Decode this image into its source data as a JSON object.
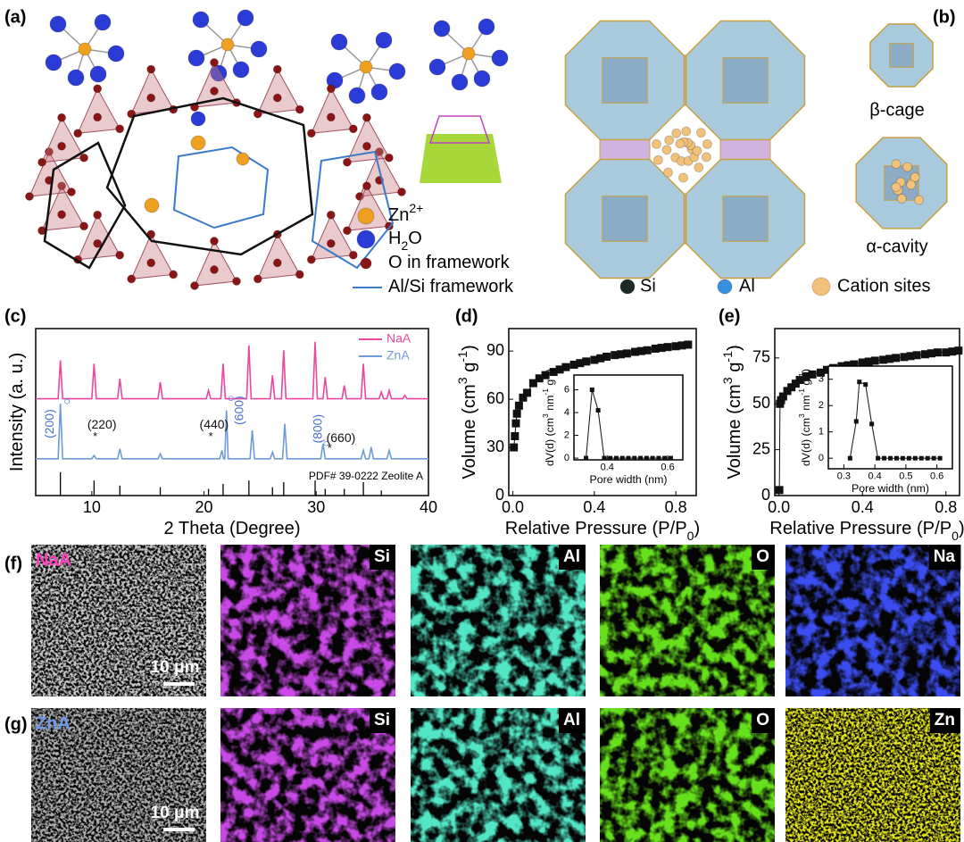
{
  "panels": {
    "a": "(a)",
    "b": "(b)",
    "c": "(c)",
    "d": "(d)",
    "e": "(e)",
    "f": "(f)",
    "g": "(g)"
  },
  "structure_a": {
    "legend": [
      {
        "parts": [
          "Zn",
          "2+"
        ],
        "shift": "super"
      },
      {
        "parts": [
          "H",
          "2",
          "O"
        ],
        "shift": "sub"
      },
      {
        "parts": [
          "O in framework"
        ]
      },
      {
        "parts": [
          "Al/Si framework"
        ]
      }
    ]
  },
  "structure_b": {
    "cage_labels": [
      "β-cage",
      "α-cavity"
    ],
    "legend": [
      "Si",
      "Al",
      "Cation sites"
    ]
  },
  "chart_data": [
    {
      "type": "line",
      "xlabel": {
        "parts": [
          "2 Theta (Degree)"
        ]
      },
      "ylabel": {
        "parts": [
          "Intensity (a. u.)"
        ]
      },
      "xlim": [
        5,
        40
      ],
      "xticks": [
        10,
        20,
        30,
        40
      ],
      "ylim": [
        0,
        100
      ],
      "legend": "upper right",
      "series": [
        {
          "name": "NaA",
          "color": "#e8489e",
          "x": [
            5,
            7.0,
            7.2,
            7.4,
            10.0,
            10.2,
            10.4,
            12.3,
            12.5,
            12.7,
            15.9,
            16.1,
            16.3,
            20.2,
            20.4,
            20.6,
            21.5,
            21.7,
            21.9,
            23.8,
            24.0,
            24.2,
            25.9,
            26.1,
            26.3,
            26.9,
            27.1,
            27.3,
            29.7,
            29.9,
            30.1,
            30.6,
            30.8,
            31.0,
            32.3,
            32.5,
            32.7,
            34.0,
            34.2,
            34.4,
            35.6,
            35.8,
            36.0,
            36.3,
            36.5,
            36.7,
            37.7,
            37.9,
            38.1,
            40
          ],
          "values": [
            58,
            58,
            81,
            58,
            58,
            79,
            58,
            58,
            70,
            58,
            58,
            68,
            58,
            58,
            63,
            58,
            58,
            79,
            58,
            58,
            90,
            58,
            58,
            72,
            58,
            58,
            87,
            58,
            58,
            92,
            58,
            58,
            71,
            58,
            58,
            66,
            58,
            58,
            79,
            58,
            58,
            62,
            58,
            58,
            63,
            58,
            58,
            60,
            58,
            58
          ]
        },
        {
          "name": "ZnA",
          "color": "#6f9bd6",
          "x": [
            5,
            7.0,
            7.2,
            7.4,
            10.0,
            10.2,
            10.4,
            12.3,
            12.5,
            12.7,
            15.9,
            16.1,
            16.3,
            21.4,
            21.6,
            21.75,
            21.85,
            22.0,
            22.15,
            24.1,
            24.3,
            24.5,
            25.9,
            26.1,
            26.3,
            27.0,
            27.2,
            27.4,
            30.4,
            30.6,
            30.8,
            34.0,
            34.2,
            34.4,
            34.7,
            34.9,
            35.1,
            36.3,
            36.5,
            36.7,
            40
          ],
          "values": [
            22,
            22,
            55,
            22,
            22,
            24,
            22,
            22,
            28,
            22,
            22,
            25,
            22,
            22,
            27,
            22,
            22,
            51,
            22,
            22,
            39,
            22,
            22,
            26,
            22,
            22,
            43,
            22,
            22,
            31,
            22,
            22,
            27,
            22,
            22,
            29,
            22,
            22,
            27,
            22,
            22
          ]
        }
      ],
      "reference": {
        "label": "PDF# 39-0222 Zeolite A",
        "x": [
          7.2,
          10.2,
          12.5,
          16.1,
          20.4,
          21.7,
          24.0,
          26.1,
          27.1,
          29.9,
          30.8,
          32.5,
          34.2,
          35.8
        ],
        "values": [
          14,
          9,
          6,
          5,
          4,
          7,
          9,
          5,
          8,
          9,
          4,
          4,
          8,
          3
        ]
      },
      "annotations": [
        {
          "text": "(200)",
          "marker": "○",
          "color": "#4a6fd0"
        },
        {
          "text": "(220)",
          "marker": "*",
          "color": "#111111"
        },
        {
          "text": "(440)",
          "marker": "*",
          "color": "#111111"
        },
        {
          "text": "(600)",
          "marker": "○",
          "color": "#4a6fd0"
        },
        {
          "text": "(800)",
          "marker": "○",
          "color": "#4a6fd0"
        },
        {
          "text": "(660)",
          "marker": "*",
          "color": "#111111"
        }
      ]
    },
    {
      "type": "line",
      "markers": "square",
      "color": "#111111",
      "xlabel": {
        "parts": [
          "Relative Pressure (P/P",
          "0",
          ")"
        ],
        "shift": "sub"
      },
      "ylabel": {
        "parts": [
          "Volume (cm",
          "3",
          " g",
          "-1",
          ")"
        ],
        "shift": "super"
      },
      "xlim": [
        -0.02,
        0.9
      ],
      "xticks": [
        {
          "value": 0,
          "label": "0.0"
        },
        0.4,
        0.8
      ],
      "ylim": [
        0,
        104
      ],
      "yticks": [
        0,
        30,
        60,
        90
      ],
      "x": [
        0.005,
        0.01,
        0.015,
        0.02,
        0.03,
        0.05,
        0.07,
        0.1,
        0.13,
        0.16,
        0.2,
        0.23,
        0.26,
        0.3,
        0.33,
        0.36,
        0.4,
        0.43,
        0.46,
        0.5,
        0.53,
        0.56,
        0.6,
        0.63,
        0.66,
        0.7,
        0.73,
        0.76,
        0.8,
        0.83,
        0.86
      ],
      "values": [
        30,
        37,
        45,
        51,
        56,
        61,
        64,
        70,
        73,
        75,
        77,
        78.5,
        80,
        81.5,
        82.5,
        83.5,
        84.5,
        85.5,
        86.5,
        87.5,
        88,
        88.5,
        89.5,
        90,
        90.5,
        91.5,
        92,
        92.5,
        93,
        93.5,
        94
      ],
      "inset": {
        "type": "line",
        "markers": "square",
        "color": "#111111",
        "xlabel": {
          "parts": [
            "Pore width (nm)"
          ]
        },
        "ylabel": {
          "parts": [
            "dV(d) (cm",
            "3",
            " nm",
            "-1",
            " g",
            "-1",
            ")"
          ],
          "shift": "super"
        },
        "xlim": [
          0.29,
          0.65
        ],
        "xticks": [
          0.4,
          0.6
        ],
        "ylim": [
          -0.15,
          7.3
        ],
        "yticks": [
          0,
          2,
          4,
          6
        ],
        "x": [
          0.33,
          0.35,
          0.37,
          0.39,
          0.41,
          0.43,
          0.45,
          0.47,
          0.49,
          0.51,
          0.53,
          0.55,
          0.57,
          0.59,
          0.61
        ],
        "values": [
          0,
          6,
          4.2,
          0,
          0,
          0,
          0,
          0,
          0,
          0,
          0,
          0,
          0,
          0,
          0
        ]
      }
    },
    {
      "type": "line",
      "markers": "square",
      "color": "#111111",
      "xlabel": {
        "parts": [
          "Relative Pressure (P/P",
          "0",
          ")"
        ],
        "shift": "sub"
      },
      "ylabel": {
        "parts": [
          "Volume (cm",
          "3",
          " g",
          "-1",
          ")"
        ],
        "shift": "super"
      },
      "xlim": [
        -0.02,
        0.865
      ],
      "xticks": [
        {
          "value": 0,
          "label": "0.0"
        },
        0.4,
        0.8
      ],
      "ylim": [
        0,
        91
      ],
      "yticks": [
        0,
        25,
        50,
        75
      ],
      "x": [
        0.002,
        0.005,
        0.01,
        0.02,
        0.04,
        0.06,
        0.08,
        0.1,
        0.13,
        0.16,
        0.2,
        0.23,
        0.26,
        0.3,
        0.33,
        0.36,
        0.4,
        0.43,
        0.46,
        0.5,
        0.53,
        0.56,
        0.6,
        0.63,
        0.66,
        0.7,
        0.73,
        0.76,
        0.8,
        0.83,
        0.86
      ],
      "values": [
        3,
        50,
        52,
        54,
        57,
        59,
        61,
        63,
        65,
        66,
        67,
        68.5,
        69.5,
        70.5,
        71,
        71.5,
        72.5,
        73,
        73.5,
        74,
        74.5,
        75,
        75.5,
        76,
        76.5,
        77,
        77.5,
        78,
        78,
        78.5,
        79
      ],
      "inset": {
        "type": "line",
        "markers": "square",
        "color": "#111111",
        "xlabel": {
          "parts": [
            "Pore width (nm)"
          ]
        },
        "ylabel": {
          "parts": [
            "dV(d) (cm",
            "3",
            " nm",
            "-1",
            " g",
            "-1",
            ")"
          ],
          "shift": "super"
        },
        "xlim": [
          0.25,
          0.65
        ],
        "xticks": [
          0.3,
          0.4,
          0.5,
          0.6
        ],
        "ylim": [
          -0.4,
          3.5
        ],
        "yticks": [
          0,
          1,
          2,
          3
        ],
        "x": [
          0.32,
          0.34,
          0.35,
          0.37,
          0.39,
          0.41,
          0.43,
          0.45,
          0.47,
          0.49,
          0.51,
          0.53,
          0.55,
          0.57,
          0.59,
          0.61
        ],
        "values": [
          0,
          1.4,
          2.9,
          2.8,
          1.3,
          0,
          0,
          0,
          0,
          0,
          0,
          0,
          0,
          0,
          0,
          0
        ]
      }
    }
  ],
  "maps": {
    "rows": [
      {
        "sample": "NaA",
        "sample_color": "#ff3fbf",
        "scale_bar": "10 μm",
        "elements": [
          "Si",
          "Al",
          "O",
          "Na"
        ],
        "colors": [
          "#c8c8c8",
          "#c84ae6",
          "#52e6c6",
          "#66e01c",
          "#3a4ef0"
        ]
      },
      {
        "sample": "ZnA",
        "sample_color": "#6f9be8",
        "scale_bar": "10 μm",
        "elements": [
          "Si",
          "Al",
          "O",
          "Zn"
        ],
        "colors": [
          "#b0b0b0",
          "#c84ae6",
          "#52e6c6",
          "#66e01c",
          "#e6e61e"
        ]
      }
    ]
  }
}
